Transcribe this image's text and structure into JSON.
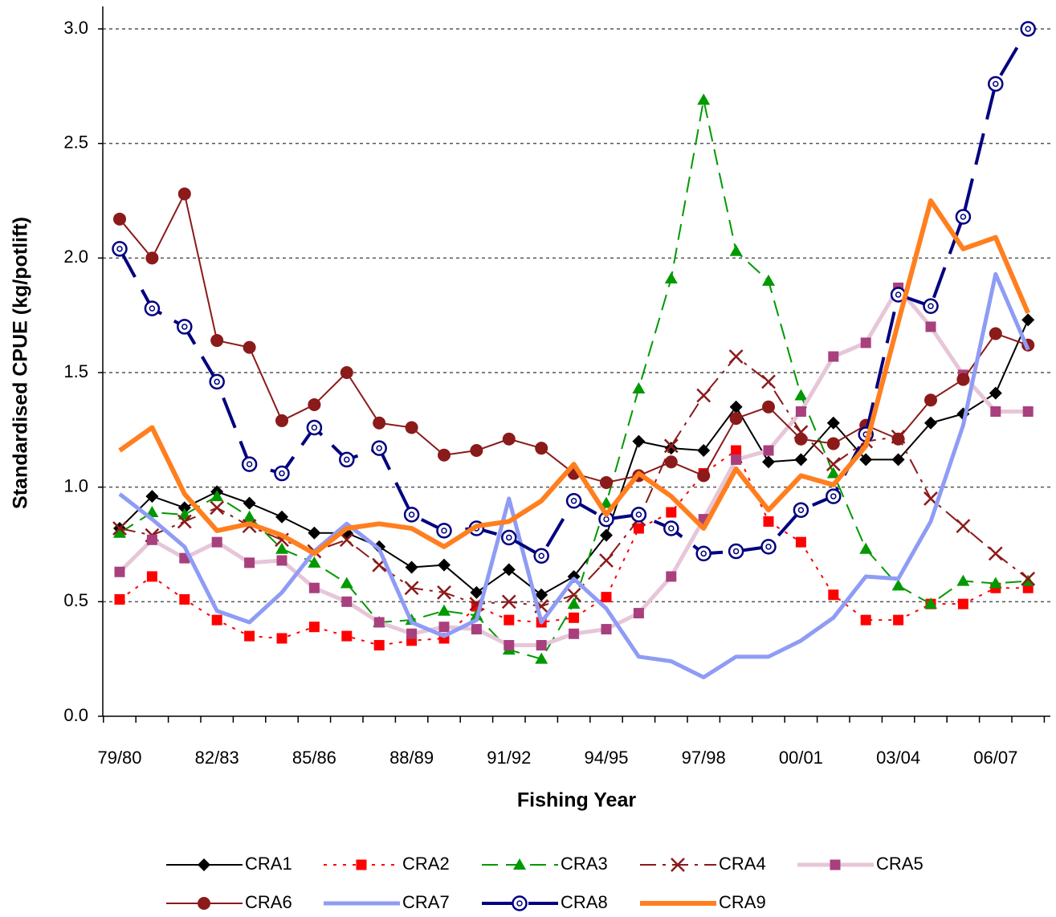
{
  "chart_data": {
    "type": "line",
    "xlabel": "Fishing Year",
    "ylabel": "Standardised CPUE (kg/potlift)",
    "categories": [
      "79/80",
      null,
      null,
      "82/83",
      null,
      null,
      "85/86",
      null,
      null,
      "88/89",
      null,
      null,
      "91/92",
      null,
      null,
      "94/95",
      null,
      null,
      "97/98",
      null,
      null,
      "00/01",
      null,
      null,
      "03/04",
      null,
      null,
      "06/07",
      null
    ],
    "ylim": [
      0,
      3
    ],
    "yticks": [
      {
        "value": 0,
        "label": "0.0"
      },
      {
        "value": 0.5,
        "label": "0.5"
      },
      {
        "value": 1,
        "label": "1.0"
      },
      {
        "value": 1.5,
        "label": "1.5"
      },
      {
        "value": 2,
        "label": "2.0"
      },
      {
        "value": 2.5,
        "label": "2.5"
      },
      {
        "value": 3,
        "label": "3.0"
      }
    ],
    "grid": true,
    "legend": "bottom",
    "series": [
      {
        "name": "CRA1",
        "color": "#000000",
        "marker": "diamond",
        "dash": "none",
        "width": 2,
        "values": [
          0.82,
          0.96,
          0.91,
          0.98,
          0.93,
          0.87,
          0.8,
          0.8,
          0.74,
          0.65,
          0.66,
          0.54,
          0.64,
          0.53,
          0.61,
          0.79,
          1.2,
          1.17,
          1.16,
          1.35,
          1.11,
          1.12,
          1.28,
          1.12,
          1.12,
          1.28,
          1.32,
          1.41,
          1.73
        ]
      },
      {
        "name": "CRA2",
        "color": "#ff0000",
        "marker": "square",
        "dash": "4,8",
        "width": 2,
        "values": [
          0.51,
          0.61,
          0.51,
          0.42,
          0.35,
          0.34,
          0.39,
          0.35,
          0.31,
          0.33,
          0.34,
          0.48,
          0.42,
          0.41,
          0.43,
          0.52,
          0.82,
          0.89,
          1.06,
          1.16,
          0.85,
          0.76,
          0.53,
          0.42,
          0.42,
          0.49,
          0.49,
          0.56,
          0.56
        ]
      },
      {
        "name": "CRA3",
        "color": "#009900",
        "marker": "triangle",
        "dash": "20,10",
        "width": 2,
        "values": [
          0.8,
          0.89,
          0.88,
          0.96,
          0.87,
          0.73,
          0.67,
          0.58,
          0.41,
          0.42,
          0.46,
          0.44,
          0.29,
          0.25,
          0.49,
          0.93,
          1.43,
          1.91,
          2.69,
          2.03,
          1.9,
          1.4,
          1.06,
          0.73,
          0.57,
          0.49,
          0.59,
          0.58,
          0.59
        ]
      },
      {
        "name": "CRA4",
        "color": "#8b1a1a",
        "marker": "x",
        "dash": "20,8,4,8",
        "width": 2,
        "values": [
          0.82,
          0.79,
          0.85,
          0.91,
          0.83,
          0.77,
          0.72,
          0.77,
          0.66,
          0.56,
          0.54,
          0.49,
          0.5,
          0.48,
          0.53,
          0.68,
          0.86,
          1.18,
          1.4,
          1.57,
          1.46,
          1.24,
          1.1,
          1.2,
          1.22,
          0.95,
          0.83,
          0.71,
          0.6
        ]
      },
      {
        "name": "CRA5",
        "color": "#a8407e",
        "line_color": "#e6c6d8",
        "marker": "square",
        "dash": "none",
        "width": 5,
        "values": [
          0.63,
          0.77,
          0.69,
          0.76,
          0.67,
          0.68,
          0.56,
          0.5,
          0.41,
          0.36,
          0.39,
          0.38,
          0.31,
          0.31,
          0.36,
          0.38,
          0.45,
          0.61,
          0.86,
          1.12,
          1.16,
          1.33,
          1.57,
          1.63,
          1.87,
          1.7,
          1.49,
          1.33,
          1.33
        ]
      },
      {
        "name": "CRA6",
        "color": "#8b1a1a",
        "marker": "circle",
        "dash": "none",
        "width": 2,
        "values": [
          2.17,
          2.0,
          2.28,
          1.64,
          1.61,
          1.29,
          1.36,
          1.5,
          1.28,
          1.26,
          1.14,
          1.16,
          1.21,
          1.17,
          1.06,
          1.02,
          1.05,
          1.11,
          1.05,
          1.3,
          1.35,
          1.21,
          1.19,
          1.27,
          1.21,
          1.38,
          1.47,
          1.67,
          1.62
        ]
      },
      {
        "name": "CRA7",
        "color": "#8f9cf5",
        "marker": "none",
        "dash": "none",
        "width": 5,
        "values": [
          0.97,
          0.86,
          0.74,
          0.46,
          0.41,
          0.54,
          0.72,
          0.84,
          0.73,
          0.41,
          0.35,
          0.42,
          0.95,
          0.41,
          0.6,
          0.47,
          0.26,
          0.24,
          0.17,
          0.26,
          0.26,
          0.33,
          0.43,
          0.61,
          0.6,
          0.85,
          1.27,
          1.93,
          1.6
        ]
      },
      {
        "name": "CRA8",
        "color": "#000080",
        "marker": "open-circle",
        "dash": "40,18",
        "width": 4,
        "values": [
          2.04,
          1.78,
          1.7,
          1.46,
          1.1,
          1.06,
          1.26,
          1.12,
          1.17,
          0.88,
          0.81,
          0.82,
          0.78,
          0.7,
          0.94,
          0.86,
          0.88,
          0.82,
          0.71,
          0.72,
          0.74,
          0.9,
          0.96,
          1.23,
          1.84,
          1.79,
          2.18,
          2.76,
          3.0
        ]
      },
      {
        "name": "CRA9",
        "color": "#ff7f1f",
        "marker": "none",
        "dash": "none",
        "width": 6,
        "values": [
          1.16,
          1.26,
          0.97,
          0.81,
          0.84,
          0.79,
          0.71,
          0.82,
          0.84,
          0.82,
          0.74,
          0.83,
          0.85,
          0.94,
          1.1,
          0.88,
          1.06,
          0.96,
          0.82,
          1.08,
          0.9,
          1.05,
          1.01,
          1.18,
          1.72,
          2.25,
          2.04,
          2.09,
          1.76
        ]
      }
    ]
  }
}
